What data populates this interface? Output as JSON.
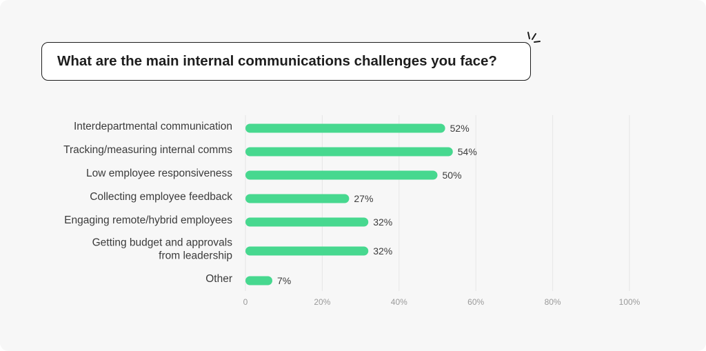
{
  "chart_data": {
    "type": "bar",
    "orientation": "horizontal",
    "title": "What are the main internal communications challenges you face?",
    "categories": [
      [
        "Interdepartmental communication"
      ],
      [
        "Tracking/measuring internal comms"
      ],
      [
        "Low employee responsiveness"
      ],
      [
        "Collecting employee feedback"
      ],
      [
        "Engaging remote/hybrid employees"
      ],
      [
        "Getting budget and approvals",
        "from leadership"
      ],
      [
        "Other"
      ]
    ],
    "values": [
      52,
      54,
      50,
      27,
      32,
      32,
      7
    ],
    "value_labels": [
      "52%",
      "54%",
      "50%",
      "27%",
      "32%",
      "32%",
      "7%"
    ],
    "xlim": [
      0,
      100
    ],
    "xticks": [
      0,
      20,
      40,
      60,
      80,
      100
    ],
    "xtick_labels": [
      "0",
      "20%",
      "40%",
      "60%",
      "80%",
      "100%"
    ],
    "grid": true,
    "bar_color": "#47d88f",
    "grid_color": "#e6e6e6"
  }
}
